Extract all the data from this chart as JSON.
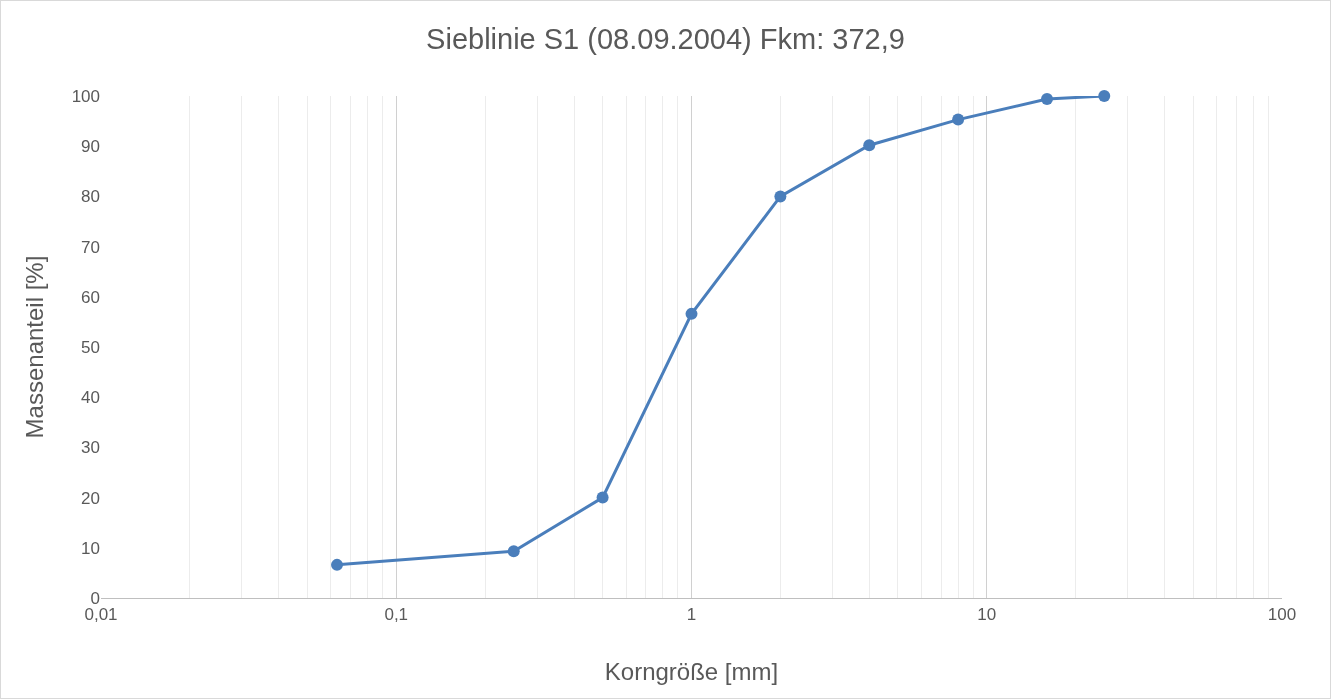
{
  "chart_data": {
    "type": "line",
    "title": "Sieblinie S1 (08.09.2004) Fkm: 372,9",
    "xlabel": "Korngröße [mm]",
    "ylabel": "Massenanteil [%]",
    "x": [
      0.063,
      0.25,
      0.5,
      1,
      2,
      4,
      8,
      16,
      25
    ],
    "series": [
      {
        "color": "#4a7ebb",
        "values": [
          6.6,
          9.3,
          20,
          56.6,
          80,
          90.2,
          95.3,
          99.4,
          100
        ]
      }
    ],
    "log": "x",
    "xlim": [
      0.01,
      100
    ],
    "xticks": [
      {
        "value": 0.01,
        "label": "0,01"
      },
      {
        "value": 0.02,
        "label": null
      },
      {
        "value": 0.03,
        "label": null
      },
      {
        "value": 0.04,
        "label": null
      },
      {
        "value": 0.05,
        "label": null
      },
      {
        "value": 0.06,
        "label": null
      },
      {
        "value": 0.07,
        "label": null
      },
      {
        "value": 0.08,
        "label": null
      },
      {
        "value": 0.09,
        "label": null
      },
      {
        "value": 0.1,
        "label": "0,1"
      },
      {
        "value": 0.2,
        "label": null
      },
      {
        "value": 0.3,
        "label": null
      },
      {
        "value": 0.4,
        "label": null
      },
      {
        "value": 0.5,
        "label": null
      },
      {
        "value": 0.6,
        "label": null
      },
      {
        "value": 0.7,
        "label": null
      },
      {
        "value": 0.8,
        "label": null
      },
      {
        "value": 0.9,
        "label": null
      },
      {
        "value": 1,
        "label": "1"
      },
      {
        "value": 2,
        "label": null
      },
      {
        "value": 3,
        "label": null
      },
      {
        "value": 4,
        "label": null
      },
      {
        "value": 5,
        "label": null
      },
      {
        "value": 6,
        "label": null
      },
      {
        "value": 7,
        "label": null
      },
      {
        "value": 8,
        "label": null
      },
      {
        "value": 9,
        "label": null
      },
      {
        "value": 10,
        "label": "10"
      },
      {
        "value": 20,
        "label": null
      },
      {
        "value": 30,
        "label": null
      },
      {
        "value": 40,
        "label": null
      },
      {
        "value": 50,
        "label": null
      },
      {
        "value": 60,
        "label": null
      },
      {
        "value": 70,
        "label": null
      },
      {
        "value": 80,
        "label": null
      },
      {
        "value": 90,
        "label": null
      },
      {
        "value": 100,
        "label": "100"
      }
    ],
    "ylim": [
      0,
      100
    ],
    "yticks": [
      0,
      10,
      20,
      30,
      40,
      50,
      60,
      70,
      80,
      90,
      100
    ],
    "grid": "x",
    "marker": "circle",
    "line_style": "solid",
    "legend": false
  }
}
